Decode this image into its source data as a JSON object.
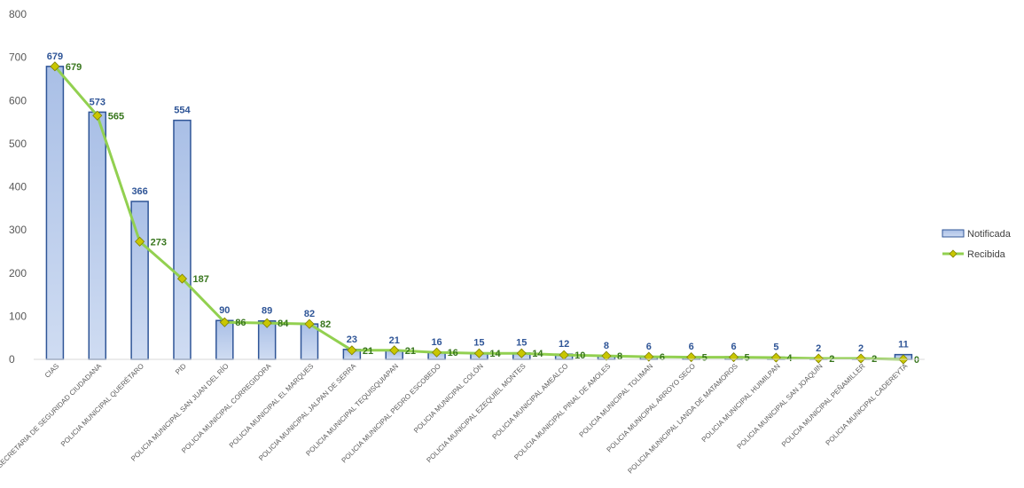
{
  "chart_data": {
    "type": "bar",
    "categories": [
      "CIAS",
      "SECRETARIA DE SEGURIDAD CIUDADANA",
      "POLICIA MUNICIPAL QUERÉTARO",
      "PID",
      "POLICIA MUNICIPAL SAN JUAN DEL RÍO",
      "POLICIA MUNICIPAL CORREGIDORA",
      "POLICIA MUNICIPAL EL MARQUES",
      "POLICIA MUNICIPAL JALPAN DE SERRA",
      "POLICIA MUNICIPAL TEQUISQUIAPAN",
      "POLICIA MUNICIPAL PEDRO ESCOBEDO",
      "POLICIA MUNICIPAL COLÓN",
      "POLICIA MUNICIPAL EZEQUIEL MONTES",
      "POLICIA MUNICIPAL AMEALCO",
      "POLICIA MUNICIPAL PINAL DE AMOLES",
      "POLICIA MUNICIPAL TOLIMAN",
      "POLICIA MUNICIPAL ARROYO SECO",
      "POLICIA MUNICIPAL LANDA DE MATAMOROS",
      "POLICIA MUNICIPAL HUIMILPAN",
      "POLICIA MUNICIPAL SAN JOAQUIN",
      "POLICIA MUNICIPAL PEÑAMILLER",
      "POLICIA MUNICIPAL CADEREYTA"
    ],
    "series": [
      {
        "name": "Notificada",
        "kind": "bar",
        "color": "#2f5597",
        "fill": "#b4c7e7",
        "label_color": "#2f5597",
        "values": [
          679,
          573,
          366,
          554,
          90,
          89,
          82,
          23,
          21,
          16,
          15,
          15,
          12,
          8,
          6,
          6,
          6,
          5,
          2,
          2,
          11
        ]
      },
      {
        "name": "Recibida",
        "kind": "line",
        "color": "#92d050",
        "marker_color": "#c9c700",
        "label_color": "#38761d",
        "values": [
          679,
          565,
          273,
          187,
          86,
          84,
          82,
          21,
          21,
          16,
          14,
          14,
          10,
          8,
          6,
          5,
          5,
          4,
          2,
          2,
          0
        ]
      }
    ],
    "ylim": [
      0,
      800
    ],
    "yticks": [
      0,
      100,
      200,
      300,
      400,
      500,
      600,
      700,
      800
    ],
    "title": "",
    "xlabel": "",
    "ylabel": "",
    "grid": false,
    "legend_position": "right"
  }
}
